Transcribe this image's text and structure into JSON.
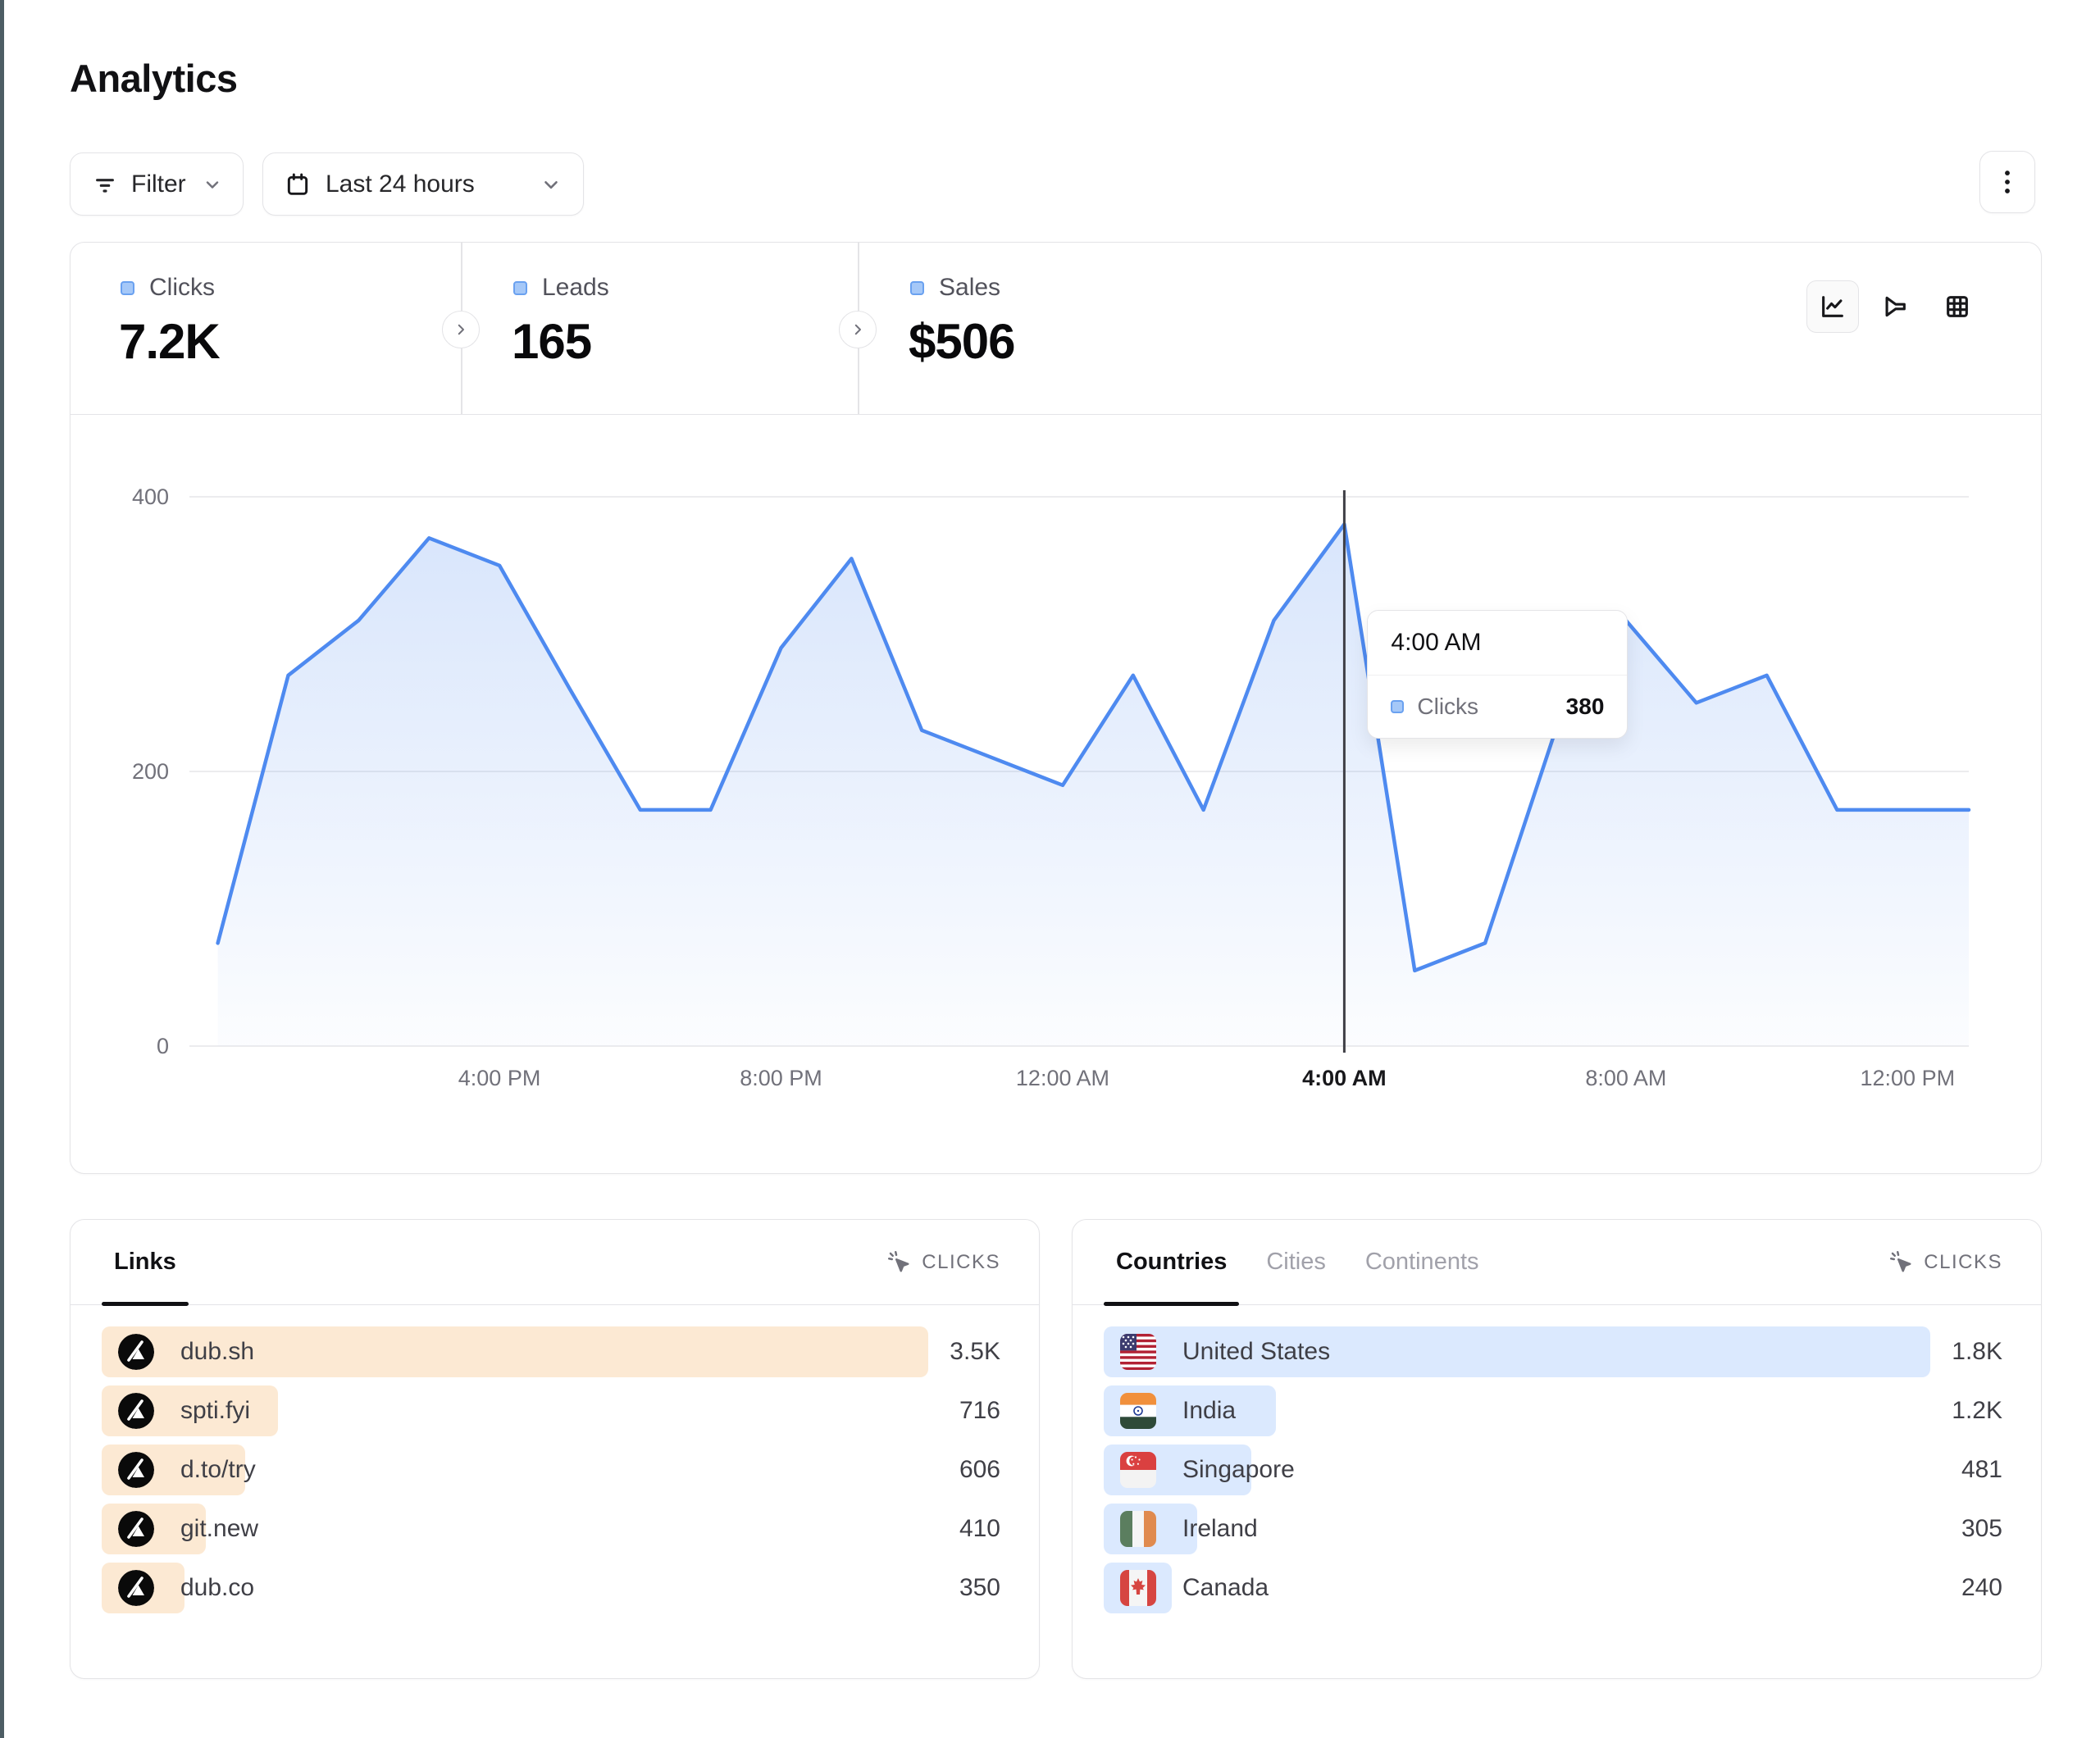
{
  "page": {
    "title": "Analytics"
  },
  "toolbar": {
    "filter": {
      "label": "Filter"
    },
    "date_range": {
      "label": "Last 24 hours"
    }
  },
  "stats": {
    "tabs": [
      {
        "label": "Clicks",
        "value": "7.2K",
        "active": true
      },
      {
        "label": "Leads",
        "value": "165",
        "active": false
      },
      {
        "label": "Sales",
        "value": "$506",
        "active": false
      }
    ],
    "view_options": [
      "line-chart",
      "funnel",
      "table"
    ],
    "active_view": "line-chart"
  },
  "chart_data": {
    "type": "area",
    "series_name": "Clicks",
    "x": [
      "12:00 PM",
      "1:00 PM",
      "2:00 PM",
      "3:00 PM",
      "4:00 PM",
      "5:00 PM",
      "6:00 PM",
      "7:00 PM",
      "8:00 PM",
      "9:00 PM",
      "10:00 PM",
      "11:00 PM",
      "12:00 AM",
      "1:00 AM",
      "2:00 AM",
      "3:00 AM",
      "4:00 AM",
      "5:00 AM",
      "6:00 AM",
      "7:00 AM",
      "8:00 AM",
      "9:00 AM",
      "10:00 AM",
      "11:00 AM",
      "12:00 PM"
    ],
    "values": [
      75,
      270,
      310,
      370,
      350,
      260,
      172,
      172,
      290,
      355,
      230,
      210,
      190,
      270,
      172,
      310,
      380,
      55,
      75,
      230,
      310,
      250,
      270,
      172,
      172
    ],
    "ylim": [
      0,
      400
    ],
    "yticks": [
      0,
      200,
      400
    ],
    "xtick_labels": [
      "4:00 PM",
      "8:00 PM",
      "12:00 AM",
      "4:00 AM",
      "8:00 AM",
      "12:00 PM"
    ],
    "xtick_indices": [
      4,
      8,
      12,
      16,
      20,
      24
    ],
    "grid": true,
    "legend": "none",
    "line_color": "#4E8AF0",
    "hover": {
      "point_index": 16,
      "x_label": "4:00 AM",
      "series_label": "Clicks",
      "value": "380"
    }
  },
  "links_panel": {
    "tab_label": "Links",
    "metric_header": {
      "icon": "cursor-click-icon",
      "label": "CLICKS"
    },
    "bar_color": "#FCE9D3",
    "rows": [
      {
        "label": "dub.sh",
        "value": "3.5K",
        "bar_pct": 92
      },
      {
        "label": "spti.fyi",
        "value": "716",
        "bar_pct": 19.6
      },
      {
        "label": "d.to/try",
        "value": "606",
        "bar_pct": 16
      },
      {
        "label": "git.new",
        "value": "410",
        "bar_pct": 11.6
      },
      {
        "label": "dub.co",
        "value": "350",
        "bar_pct": 9.2
      }
    ]
  },
  "countries_panel": {
    "tabs": [
      {
        "label": "Countries",
        "active": true
      },
      {
        "label": "Cities",
        "active": false
      },
      {
        "label": "Continents",
        "active": false
      }
    ],
    "metric_header": {
      "icon": "cursor-click-icon",
      "label": "CLICKS"
    },
    "bar_color": "#DBE9FE",
    "rows": [
      {
        "label": "United States",
        "flag": "us",
        "value": "1.8K",
        "bar_pct": 92
      },
      {
        "label": "India",
        "flag": "in",
        "value": "1.2K",
        "bar_pct": 19.2
      },
      {
        "label": "Singapore",
        "flag": "sg",
        "value": "481",
        "bar_pct": 16.4
      },
      {
        "label": "Ireland",
        "flag": "ie",
        "value": "305",
        "bar_pct": 10.4
      },
      {
        "label": "Canada",
        "flag": "ca",
        "value": "240",
        "bar_pct": 7.6
      }
    ]
  }
}
